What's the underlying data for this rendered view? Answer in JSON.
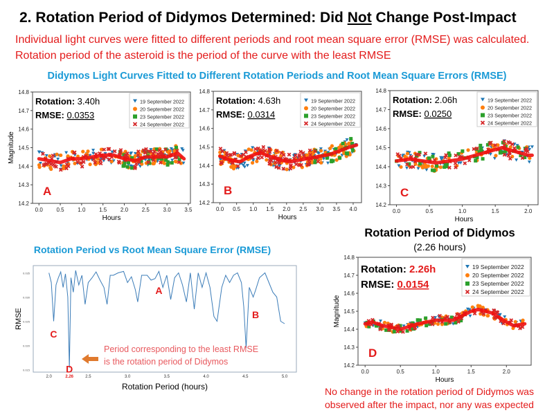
{
  "slide": {
    "title_pre": "2. Rotation Period of Didymos Determined: Did ",
    "title_em": "Not",
    "title_post": " Change Post-Impact",
    "intro": "Individual light curves were fitted to different periods and root mean square error (RMSE) was calculated. Rotation period of the asteroid is the period of the curve with the least RMSE",
    "subtitle": "Didymos Light Curves Fitted to Different Rotation Periods and Root Mean Square Errors (RMSE)",
    "rmse_title": "Rotation Period vs Root Mean Square Error (RMSE)",
    "d_title": "Rotation Period of Didymos",
    "d_subtitle": "(2.26 hours)",
    "conclusion": "No change in the rotation period of Didymos was observed after the impact, nor any was expected",
    "annotation": "Period corresponding to the least RMSE is the rotation period of Didymos"
  },
  "colors": {
    "s19": "#1f77b4",
    "s20": "#ff7f0e",
    "s23": "#2ca02c",
    "s24": "#d62728",
    "fit": "#ee1111",
    "accent": "#e31b1b",
    "title_blue": "#1a9ad6",
    "arrow": "#e07a2e"
  },
  "chart_data": [
    {
      "type": "scatter",
      "panel": "A",
      "rotation_label": "Rotation:",
      "rotation": "3.40h",
      "rmse_label": "RMSE:",
      "rmse": "0.0353",
      "xlabel": "Hours",
      "ylabel": "Magnitude",
      "xlim": [
        -0.15,
        3.55
      ],
      "ylim": [
        14.2,
        14.8
      ],
      "xticks": [
        "0.0",
        "0.5",
        "1.0",
        "1.5",
        "2.0",
        "2.5",
        "3.0",
        "3.5"
      ],
      "yticks": [
        "14.2",
        "14.3",
        "14.4",
        "14.5",
        "14.6",
        "14.7",
        "14.8"
      ],
      "legend": [
        "19 September 2022",
        "20 September 2022",
        "23 September 2022",
        "24 September 2022"
      ],
      "fit": {
        "x": [
          0,
          0.25,
          0.5,
          0.75,
          1.0,
          1.25,
          1.5,
          1.75,
          2.0,
          2.25,
          2.5,
          2.75,
          3.0,
          3.25,
          3.4
        ],
        "y": [
          14.44,
          14.43,
          14.42,
          14.44,
          14.44,
          14.45,
          14.46,
          14.46,
          14.44,
          14.43,
          14.45,
          14.45,
          14.45,
          14.47,
          14.44
        ]
      },
      "ranges": {
        "s19": [
          0,
          3.4
        ],
        "s20": [
          0,
          3.35
        ],
        "s23": [
          1.9,
          3.3
        ],
        "s24": [
          0,
          3.3
        ]
      }
    },
    {
      "type": "scatter",
      "panel": "B",
      "rotation_label": "Rotation:",
      "rotation": "4.63h",
      "rmse_label": "RMSE:",
      "rmse": "0.0314",
      "xlabel": "Hours",
      "ylabel": "",
      "xlim": [
        -0.2,
        4.25
      ],
      "ylim": [
        14.2,
        14.8
      ],
      "xticks": [
        "0.0",
        "0.5",
        "1.0",
        "1.5",
        "2.0",
        "2.5",
        "3.0",
        "3.5",
        "4.0"
      ],
      "yticks": [
        "14.2",
        "14.3",
        "14.4",
        "14.5",
        "14.6",
        "14.7",
        "14.8"
      ],
      "legend": [
        "19 September 2022",
        "20 September 2022",
        "23 September 2022",
        "24 September 2022"
      ],
      "fit": {
        "x": [
          0,
          0.3,
          0.6,
          0.9,
          1.2,
          1.5,
          1.8,
          2.1,
          2.4,
          2.7,
          3.0,
          3.3,
          3.6,
          3.9,
          4.1
        ],
        "y": [
          14.45,
          14.43,
          14.42,
          14.45,
          14.47,
          14.45,
          14.43,
          14.42,
          14.43,
          14.44,
          14.45,
          14.46,
          14.48,
          14.5,
          14.51
        ]
      },
      "ranges": {
        "s19": [
          0,
          4.1
        ],
        "s20": [
          0,
          4.1
        ],
        "s23": [
          2.8,
          4.0
        ],
        "s24": [
          0,
          3.0
        ]
      }
    },
    {
      "type": "scatter",
      "panel": "C",
      "rotation_label": "Rotation:",
      "rotation": "2.06h",
      "rmse_label": "RMSE:",
      "rmse": "0.0250",
      "xlabel": "Hours",
      "ylabel": "",
      "xlim": [
        -0.1,
        2.15
      ],
      "ylim": [
        14.2,
        14.8
      ],
      "xticks": [
        "0.0",
        "0.5",
        "1.0",
        "1.5",
        "2.0"
      ],
      "yticks": [
        "14.2",
        "14.3",
        "14.4",
        "14.5",
        "14.6",
        "14.7",
        "14.8"
      ],
      "legend": [
        "19 September 2022",
        "20 September 2022",
        "23 September 2022",
        "24 September 2022"
      ],
      "fit": {
        "x": [
          0,
          0.2,
          0.4,
          0.6,
          0.8,
          1.0,
          1.2,
          1.4,
          1.6,
          1.8,
          2.0,
          2.06
        ],
        "y": [
          14.43,
          14.44,
          14.43,
          14.42,
          14.43,
          14.44,
          14.46,
          14.48,
          14.5,
          14.48,
          14.46,
          14.46
        ]
      },
      "ranges": {
        "s19": [
          0,
          2.06
        ],
        "s20": [
          0,
          2.06
        ],
        "s23": [
          0,
          2.0
        ],
        "s24": [
          0,
          2.0
        ]
      }
    },
    {
      "type": "scatter",
      "panel": "D",
      "rotation_label": "Rotation:",
      "rotation": "2.26h",
      "rmse_label": "RMSE:",
      "rmse": "0.0154",
      "xlabel": "Hours",
      "ylabel": "Magnitude",
      "xlim": [
        -0.1,
        2.35
      ],
      "ylim": [
        14.2,
        14.8
      ],
      "xticks": [
        "0.0",
        "0.5",
        "1.0",
        "1.5",
        "2.0"
      ],
      "yticks": [
        "14.2",
        "14.3",
        "14.4",
        "14.5",
        "14.6",
        "14.7",
        "14.8"
      ],
      "legend": [
        "19 September 2022",
        "20 September 2022",
        "23 September 2022",
        "24 September 2022"
      ],
      "fit": {
        "x": [
          0,
          0.1,
          0.25,
          0.5,
          0.75,
          1.0,
          1.25,
          1.5,
          1.6,
          1.8,
          2.0,
          2.1,
          2.26
        ],
        "y": [
          14.43,
          14.44,
          14.42,
          14.4,
          14.43,
          14.45,
          14.45,
          14.5,
          14.51,
          14.49,
          14.44,
          14.42,
          14.43
        ]
      },
      "ranges": {
        "s19": [
          0,
          2.26
        ],
        "s20": [
          0,
          2.26
        ],
        "s23": [
          0,
          1.4
        ],
        "s24": [
          0,
          2.26
        ]
      }
    },
    {
      "type": "line",
      "title": "Rotation Period vs Root Mean Square Error (RMSE)",
      "xlabel": "Rotation Period (hours)",
      "ylabel": "RMSE",
      "xlim": [
        1.8,
        5.15
      ],
      "ylim": [
        0.0145,
        0.0365
      ],
      "xticks": [
        "2.0",
        "2.5",
        "3.0",
        "3.5",
        "4.0",
        "4.5",
        "5.0"
      ],
      "highlight_tick": "2.26",
      "yticks": [
        "0.015",
        "0.020",
        "0.025",
        "0.030",
        "0.035"
      ],
      "x": [
        2.0,
        2.03,
        2.06,
        2.09,
        2.12,
        2.15,
        2.18,
        2.21,
        2.24,
        2.26,
        2.28,
        2.31,
        2.34,
        2.38,
        2.42,
        2.46,
        2.5,
        2.55,
        2.6,
        2.65,
        2.7,
        2.74,
        2.78,
        2.82,
        2.88,
        2.95,
        3.0,
        3.05,
        3.1,
        3.13,
        3.18,
        3.25,
        3.3,
        3.35,
        3.4,
        3.45,
        3.5,
        3.55,
        3.6,
        3.65,
        3.7,
        3.75,
        3.8,
        3.85,
        3.9,
        3.95,
        4.0,
        4.05,
        4.1,
        4.14,
        4.2,
        4.25,
        4.3,
        4.35,
        4.4,
        4.45,
        4.48,
        4.51,
        4.55,
        4.6,
        4.63,
        4.68,
        4.75,
        4.8,
        4.85,
        4.9,
        4.95,
        5.0
      ],
      "y": [
        0.035,
        0.033,
        0.025,
        0.0325,
        0.034,
        0.0352,
        0.032,
        0.0348,
        0.03,
        0.0154,
        0.034,
        0.031,
        0.0355,
        0.0325,
        0.0345,
        0.0285,
        0.033,
        0.034,
        0.0352,
        0.0335,
        0.032,
        0.0285,
        0.0345,
        0.0345,
        0.035,
        0.0353,
        0.033,
        0.0342,
        0.0315,
        0.029,
        0.0345,
        0.0345,
        0.0335,
        0.0338,
        0.0353,
        0.032,
        0.0345,
        0.0295,
        0.034,
        0.035,
        0.0325,
        0.029,
        0.035,
        0.0275,
        0.035,
        0.032,
        0.035,
        0.032,
        0.026,
        0.025,
        0.032,
        0.0345,
        0.033,
        0.0345,
        0.035,
        0.033,
        0.028,
        0.0195,
        0.032,
        0.03,
        0.0314,
        0.034,
        0.035,
        0.033,
        0.031,
        0.03,
        0.025,
        0.0245
      ],
      "labels": [
        {
          "text": "A",
          "x": 3.4,
          "y": 0.0315
        },
        {
          "text": "B",
          "x": 4.63,
          "y": 0.0265
        },
        {
          "text": "C",
          "x": 2.06,
          "y": 0.0225
        },
        {
          "text": "D",
          "x": 2.26,
          "y": 0.0153
        }
      ]
    }
  ]
}
